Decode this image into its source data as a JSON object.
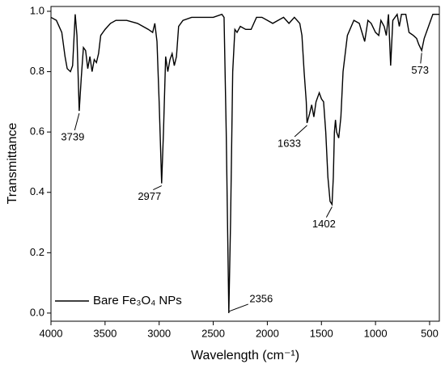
{
  "chart_data": {
    "type": "line",
    "xlabel": "Wavelength (cm⁻¹)",
    "ylabel": "Transmittance",
    "x": [
      4000,
      3950,
      3900,
      3870,
      3850,
      3820,
      3800,
      3776,
      3760,
      3739,
      3720,
      3700,
      3680,
      3660,
      3640,
      3620,
      3600,
      3580,
      3560,
      3540,
      3500,
      3450,
      3400,
      3300,
      3200,
      3150,
      3100,
      3060,
      3040,
      3020,
      3000,
      2977,
      2960,
      2940,
      2920,
      2900,
      2880,
      2860,
      2840,
      2820,
      2780,
      2700,
      2600,
      2500,
      2420,
      2400,
      2380,
      2356,
      2340,
      2320,
      2300,
      2280,
      2250,
      2200,
      2150,
      2100,
      2050,
      2000,
      1950,
      1900,
      1850,
      1800,
      1750,
      1700,
      1680,
      1660,
      1640,
      1633,
      1610,
      1590,
      1570,
      1550,
      1520,
      1500,
      1480,
      1460,
      1440,
      1420,
      1402,
      1390,
      1380,
      1370,
      1360,
      1340,
      1320,
      1300,
      1260,
      1200,
      1150,
      1100,
      1070,
      1040,
      1000,
      970,
      950,
      920,
      900,
      880,
      860,
      840,
      800,
      780,
      760,
      720,
      690,
      650,
      620,
      600,
      573,
      550,
      500,
      470,
      430,
      410
    ],
    "series": [
      {
        "name": "Bare Fe₃O₄ NPs",
        "color": "#000000",
        "values": [
          0.98,
          0.97,
          0.93,
          0.85,
          0.81,
          0.8,
          0.82,
          0.99,
          0.92,
          0.67,
          0.78,
          0.88,
          0.87,
          0.81,
          0.85,
          0.8,
          0.84,
          0.83,
          0.86,
          0.92,
          0.94,
          0.96,
          0.97,
          0.97,
          0.96,
          0.95,
          0.94,
          0.93,
          0.96,
          0.9,
          0.7,
          0.43,
          0.6,
          0.85,
          0.8,
          0.84,
          0.86,
          0.82,
          0.85,
          0.95,
          0.97,
          0.98,
          0.98,
          0.98,
          0.99,
          0.98,
          0.6,
          0.0,
          0.3,
          0.8,
          0.94,
          0.93,
          0.95,
          0.94,
          0.94,
          0.98,
          0.98,
          0.97,
          0.96,
          0.97,
          0.98,
          0.96,
          0.98,
          0.96,
          0.92,
          0.8,
          0.7,
          0.63,
          0.66,
          0.69,
          0.65,
          0.7,
          0.73,
          0.71,
          0.7,
          0.6,
          0.45,
          0.37,
          0.36,
          0.45,
          0.6,
          0.64,
          0.6,
          0.58,
          0.65,
          0.8,
          0.92,
          0.97,
          0.96,
          0.9,
          0.97,
          0.96,
          0.93,
          0.92,
          0.97,
          0.95,
          0.92,
          0.99,
          0.82,
          0.97,
          0.99,
          0.95,
          0.99,
          0.99,
          0.93,
          0.92,
          0.91,
          0.89,
          0.87,
          0.91,
          0.96,
          0.99,
          0.99,
          0.99
        ]
      }
    ],
    "xlim": [
      4000,
      410
    ],
    "ylim": [
      -0.027,
      1.016
    ],
    "xticks": [
      4000,
      3500,
      3000,
      2500,
      2000,
      1500,
      1000,
      500
    ],
    "yticks": [
      {
        "value": 0,
        "label": "0.0"
      },
      0.2,
      0.4,
      0.6,
      0.8,
      {
        "value": 1,
        "label": "1.0"
      }
    ],
    "annotations": [
      {
        "text": "3739",
        "x": 3739,
        "y": 0.67
      },
      {
        "text": "2977",
        "x": 2977,
        "y": 0.43
      },
      {
        "text": "2356",
        "x": 2356,
        "y": 0.0
      },
      {
        "text": "1633",
        "x": 1633,
        "y": 0.63
      },
      {
        "text": "1402",
        "x": 1402,
        "y": 0.36
      },
      {
        "text": "573",
        "x": 573,
        "y": 0.87
      }
    ],
    "legend": "lower left"
  }
}
